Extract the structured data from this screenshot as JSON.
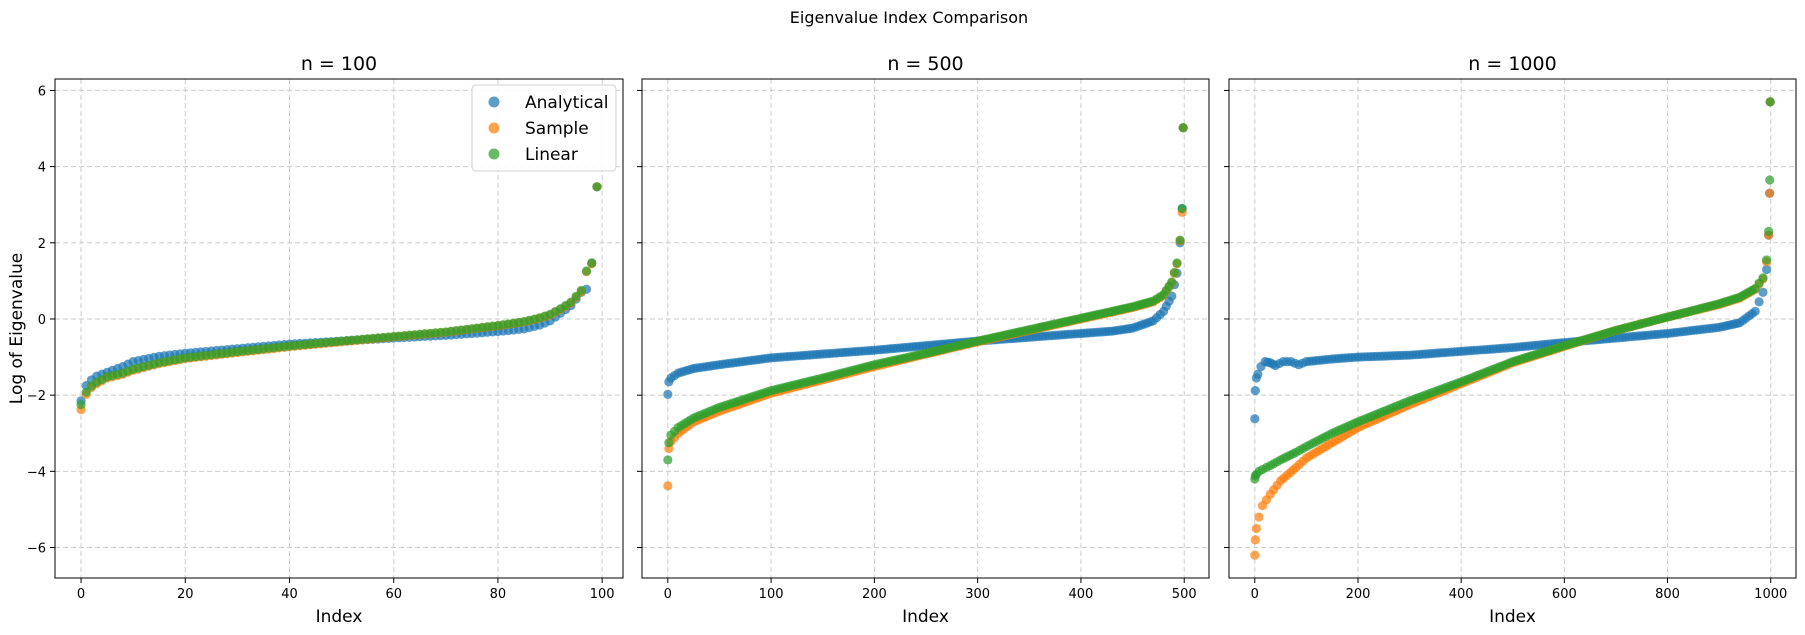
{
  "figure": {
    "suptitle": "Eigenvalue Index Comparison"
  },
  "colors": {
    "Analytical": "#1f77b4",
    "Sample": "#ff7f0e",
    "Linear": "#2ca02c",
    "grid": "#cccccc"
  },
  "chart_data": [
    {
      "type": "scatter",
      "title": "n = 100",
      "xlabel": "Index",
      "ylabel": "Log of Eigenvalue",
      "xlim": [
        -5,
        104
      ],
      "ylim": [
        -6.8,
        6.3
      ],
      "xticks": [
        0,
        20,
        40,
        60,
        80,
        100
      ],
      "yticks": [
        -6,
        -4,
        -2,
        0,
        2,
        4,
        6
      ],
      "xtick_labels": [
        "0",
        "20",
        "40",
        "60",
        "80",
        "100"
      ],
      "ytick_labels": [
        "−6",
        "−4",
        "−2",
        "0",
        "2",
        "4",
        "6"
      ],
      "grid": true,
      "legend": {
        "position": "top-right",
        "entries": [
          "Analytical",
          "Sample",
          "Linear"
        ]
      },
      "series": [
        {
          "name": "Analytical",
          "points": [
            [
              0,
              -2.15
            ],
            [
              1,
              -1.75
            ],
            [
              2,
              -1.6
            ],
            [
              3,
              -1.5
            ],
            [
              5,
              -1.4
            ],
            [
              8,
              -1.25
            ],
            [
              10,
              -1.12
            ],
            [
              15,
              -0.98
            ],
            [
              20,
              -0.9
            ],
            [
              30,
              -0.78
            ],
            [
              40,
              -0.66
            ],
            [
              50,
              -0.58
            ],
            [
              60,
              -0.5
            ],
            [
              70,
              -0.43
            ],
            [
              80,
              -0.33
            ],
            [
              85,
              -0.26
            ],
            [
              88,
              -0.16
            ],
            [
              90,
              -0.05
            ],
            [
              92,
              0.15
            ],
            [
              94,
              0.35
            ],
            [
              96,
              0.7
            ],
            [
              97,
              0.78
            ],
            [
              98,
              1.47
            ],
            [
              99,
              3.47
            ]
          ]
        },
        {
          "name": "Sample",
          "points": [
            [
              0,
              -2.38
            ],
            [
              1,
              -1.98
            ],
            [
              2,
              -1.8
            ],
            [
              3,
              -1.7
            ],
            [
              5,
              -1.55
            ],
            [
              8,
              -1.45
            ],
            [
              10,
              -1.35
            ],
            [
              15,
              -1.17
            ],
            [
              20,
              -1.04
            ],
            [
              30,
              -0.88
            ],
            [
              40,
              -0.73
            ],
            [
              50,
              -0.6
            ],
            [
              60,
              -0.47
            ],
            [
              70,
              -0.35
            ],
            [
              80,
              -0.18
            ],
            [
              85,
              -0.08
            ],
            [
              88,
              0.02
            ],
            [
              90,
              0.1
            ],
            [
              92,
              0.25
            ],
            [
              94,
              0.42
            ],
            [
              96,
              0.72
            ],
            [
              97,
              1.24
            ],
            [
              98,
              1.45
            ],
            [
              99,
              3.47
            ]
          ]
        },
        {
          "name": "Linear",
          "points": [
            [
              0,
              -2.25
            ],
            [
              1,
              -1.92
            ],
            [
              2,
              -1.76
            ],
            [
              3,
              -1.66
            ],
            [
              5,
              -1.52
            ],
            [
              8,
              -1.42
            ],
            [
              10,
              -1.32
            ],
            [
              15,
              -1.15
            ],
            [
              20,
              -1.02
            ],
            [
              30,
              -0.86
            ],
            [
              40,
              -0.71
            ],
            [
              50,
              -0.58
            ],
            [
              60,
              -0.46
            ],
            [
              70,
              -0.34
            ],
            [
              80,
              -0.17
            ],
            [
              85,
              -0.07
            ],
            [
              88,
              0.03
            ],
            [
              90,
              0.12
            ],
            [
              92,
              0.27
            ],
            [
              94,
              0.44
            ],
            [
              96,
              0.75
            ],
            [
              97,
              1.26
            ],
            [
              98,
              1.47
            ],
            [
              99,
              3.47
            ]
          ]
        }
      ]
    },
    {
      "type": "scatter",
      "title": "n = 500",
      "xlabel": "Index",
      "ylabel": "",
      "xlim": [
        -25,
        524
      ],
      "ylim": [
        -6.8,
        6.3
      ],
      "xticks": [
        0,
        100,
        200,
        300,
        400,
        500
      ],
      "yticks": [
        -6,
        -4,
        -2,
        0,
        2,
        4,
        6
      ],
      "xtick_labels": [
        "0",
        "100",
        "200",
        "300",
        "400",
        "500"
      ],
      "ytick_labels": [],
      "grid": true,
      "series": [
        {
          "name": "Analytical",
          "points": [
            [
              0,
              -1.98
            ],
            [
              1,
              -1.65
            ],
            [
              3,
              -1.55
            ],
            [
              10,
              -1.42
            ],
            [
              25,
              -1.3
            ],
            [
              50,
              -1.2
            ],
            [
              100,
              -1.02
            ],
            [
              150,
              -0.92
            ],
            [
              200,
              -0.82
            ],
            [
              250,
              -0.7
            ],
            [
              300,
              -0.58
            ],
            [
              350,
              -0.48
            ],
            [
              400,
              -0.38
            ],
            [
              430,
              -0.32
            ],
            [
              450,
              -0.24
            ],
            [
              470,
              -0.05
            ],
            [
              480,
              0.2
            ],
            [
              488,
              0.6
            ],
            [
              493,
              1.2
            ],
            [
              496,
              2.0
            ],
            [
              498,
              2.9
            ],
            [
              499,
              5.02
            ]
          ]
        },
        {
          "name": "Sample",
          "points": [
            [
              0,
              -4.38
            ],
            [
              1,
              -3.4
            ],
            [
              3,
              -3.22
            ],
            [
              10,
              -3.0
            ],
            [
              25,
              -2.7
            ],
            [
              50,
              -2.42
            ],
            [
              100,
              -1.95
            ],
            [
              150,
              -1.6
            ],
            [
              200,
              -1.25
            ],
            [
              250,
              -0.92
            ],
            [
              300,
              -0.6
            ],
            [
              350,
              -0.3
            ],
            [
              400,
              0.0
            ],
            [
              430,
              0.18
            ],
            [
              450,
              0.3
            ],
            [
              470,
              0.45
            ],
            [
              480,
              0.62
            ],
            [
              488,
              0.95
            ],
            [
              493,
              1.45
            ],
            [
              496,
              2.05
            ],
            [
              498,
              2.8
            ],
            [
              499,
              5.02
            ]
          ]
        },
        {
          "name": "Linear",
          "points": [
            [
              0,
              -3.7
            ],
            [
              1,
              -3.25
            ],
            [
              3,
              -3.05
            ],
            [
              10,
              -2.85
            ],
            [
              25,
              -2.6
            ],
            [
              50,
              -2.32
            ],
            [
              100,
              -1.88
            ],
            [
              150,
              -1.55
            ],
            [
              200,
              -1.2
            ],
            [
              250,
              -0.9
            ],
            [
              300,
              -0.58
            ],
            [
              350,
              -0.28
            ],
            [
              400,
              0.02
            ],
            [
              430,
              0.2
            ],
            [
              450,
              0.32
            ],
            [
              470,
              0.47
            ],
            [
              480,
              0.64
            ],
            [
              488,
              0.97
            ],
            [
              493,
              1.47
            ],
            [
              496,
              2.07
            ],
            [
              498,
              2.9
            ],
            [
              499,
              5.02
            ]
          ]
        }
      ]
    },
    {
      "type": "scatter",
      "title": "n = 1000",
      "xlabel": "Index",
      "ylabel": "",
      "xlim": [
        -50,
        1049
      ],
      "ylim": [
        -6.8,
        6.3
      ],
      "xticks": [
        0,
        200,
        400,
        600,
        800,
        1000
      ],
      "yticks": [
        -6,
        -4,
        -2,
        0,
        2,
        4,
        6
      ],
      "xtick_labels": [
        "0",
        "200",
        "400",
        "600",
        "800",
        "1000"
      ],
      "ytick_labels": [],
      "grid": true,
      "series": [
        {
          "name": "Analytical",
          "points": [
            [
              0,
              -2.62
            ],
            [
              1,
              -1.88
            ],
            [
              3,
              -1.55
            ],
            [
              6,
              -1.45
            ],
            [
              12,
              -1.25
            ],
            [
              20,
              -1.12
            ],
            [
              30,
              -1.15
            ],
            [
              40,
              -1.22
            ],
            [
              55,
              -1.12
            ],
            [
              70,
              -1.12
            ],
            [
              85,
              -1.2
            ],
            [
              100,
              -1.12
            ],
            [
              150,
              -1.05
            ],
            [
              200,
              -1.0
            ],
            [
              300,
              -0.95
            ],
            [
              400,
              -0.85
            ],
            [
              500,
              -0.75
            ],
            [
              600,
              -0.62
            ],
            [
              700,
              -0.5
            ],
            [
              800,
              -0.38
            ],
            [
              900,
              -0.22
            ],
            [
              940,
              -0.1
            ],
            [
              970,
              0.2
            ],
            [
              985,
              0.7
            ],
            [
              992,
              1.3
            ],
            [
              996,
              2.2
            ],
            [
              998,
              3.3
            ],
            [
              999,
              5.7
            ]
          ]
        },
        {
          "name": "Sample",
          "points": [
            [
              0,
              -6.2
            ],
            [
              1,
              -5.8
            ],
            [
              3,
              -5.5
            ],
            [
              8,
              -5.2
            ],
            [
              15,
              -4.9
            ],
            [
              30,
              -4.6
            ],
            [
              50,
              -4.25
            ],
            [
              80,
              -3.9
            ],
            [
              100,
              -3.65
            ],
            [
              150,
              -3.25
            ],
            [
              200,
              -2.85
            ],
            [
              300,
              -2.25
            ],
            [
              400,
              -1.7
            ],
            [
              500,
              -1.15
            ],
            [
              600,
              -0.72
            ],
            [
              700,
              -0.3
            ],
            [
              800,
              0.05
            ],
            [
              900,
              0.38
            ],
            [
              940,
              0.55
            ],
            [
              970,
              0.78
            ],
            [
              985,
              1.05
            ],
            [
              992,
              1.5
            ],
            [
              996,
              2.2
            ],
            [
              998,
              3.3
            ],
            [
              999,
              5.7
            ]
          ]
        },
        {
          "name": "Linear",
          "points": [
            [
              0,
              -4.2
            ],
            [
              1,
              -4.12
            ],
            [
              3,
              -4.08
            ],
            [
              8,
              -4.0
            ],
            [
              15,
              -3.95
            ],
            [
              30,
              -3.85
            ],
            [
              50,
              -3.7
            ],
            [
              80,
              -3.5
            ],
            [
              100,
              -3.35
            ],
            [
              150,
              -3.0
            ],
            [
              200,
              -2.7
            ],
            [
              300,
              -2.15
            ],
            [
              400,
              -1.65
            ],
            [
              500,
              -1.12
            ],
            [
              600,
              -0.7
            ],
            [
              700,
              -0.3
            ],
            [
              800,
              0.05
            ],
            [
              900,
              0.4
            ],
            [
              940,
              0.57
            ],
            [
              970,
              0.8
            ],
            [
              985,
              1.08
            ],
            [
              992,
              1.55
            ],
            [
              996,
              2.3
            ],
            [
              998,
              3.65
            ],
            [
              999,
              5.7
            ]
          ]
        }
      ]
    }
  ]
}
